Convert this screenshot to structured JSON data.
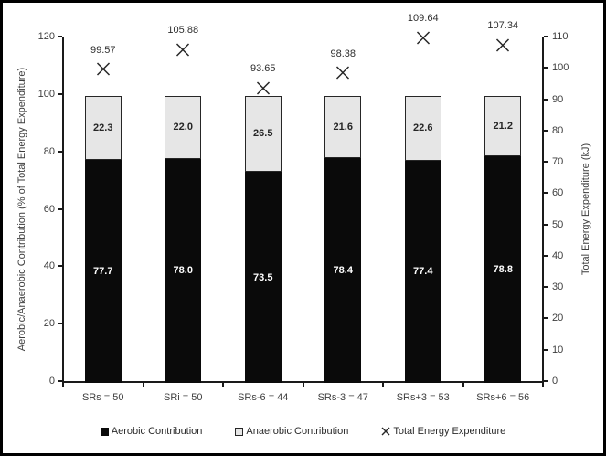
{
  "frame": {
    "background": "#ffffff",
    "border_color": "#000000"
  },
  "colors": {
    "axis_line": "#1a1a1a",
    "tick_text": "#3d3d3d",
    "marker": "#262626"
  },
  "chart_data": {
    "type": "bar",
    "subtype": "stacked-percent-bars-with-scatter-overlay",
    "grid": false,
    "legend_position": "bottom",
    "categories": [
      "SRs = 50",
      "SRi = 50",
      "SRs-6 = 44",
      "SRs-3 = 47",
      "SRs+3 = 53",
      "SRs+6 = 56"
    ],
    "series": [
      {
        "name": "Aerobic Contribution",
        "type": "bar",
        "axis": "left",
        "color": "#0a0a0a",
        "label_color": "#ffffff",
        "label_decimals": 1,
        "values": [
          77.7,
          78.0,
          73.5,
          78.4,
          77.4,
          78.8
        ]
      },
      {
        "name": "Anaerobic Contribution",
        "type": "bar",
        "axis": "left",
        "color": "#e6e6e6",
        "label_color": "#262626",
        "label_decimals": 1,
        "values": [
          22.3,
          22.0,
          26.5,
          21.6,
          22.6,
          21.2
        ]
      },
      {
        "name": "Total Energy Expenditure",
        "type": "scatter-x",
        "axis": "right",
        "color": "#262626",
        "label_color": "#2e2e2e",
        "label_decimals": 2,
        "values": [
          99.57,
          105.88,
          93.65,
          98.38,
          109.64,
          107.34
        ]
      }
    ],
    "left_axis": {
      "title": "Aerobic/Anaerobic Contribution (% of Total Energy Expenditure)",
      "min": 0,
      "max": 120,
      "step": 20
    },
    "right_axis": {
      "title": "Total Energy Expenditure (kJ)",
      "min": 0,
      "max": 110,
      "step": 10
    },
    "legend": [
      {
        "marker": "filled-square",
        "label": "Aerobic Contribution"
      },
      {
        "marker": "open-square",
        "label": "Anaerobic Contribution"
      },
      {
        "marker": "x",
        "label": "Total Energy Expenditure"
      }
    ]
  }
}
